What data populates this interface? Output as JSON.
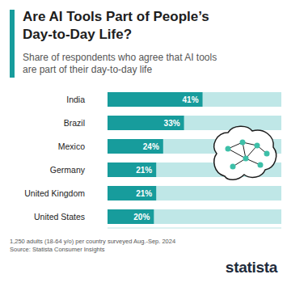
{
  "chart_data": {
    "type": "bar",
    "orientation": "horizontal",
    "title": "Are AI Tools Part of People’s Day-to-Day Life?",
    "subtitle": "Share of respondents who agree that AI tools are part of their day-to-day life",
    "categories": [
      "India",
      "Brazil",
      "Mexico",
      "Germany",
      "United Kingdom",
      "United States"
    ],
    "values": [
      41,
      33,
      24,
      21,
      21,
      20
    ],
    "value_labels": [
      "41%",
      "33%",
      "24%",
      "21%",
      "21%",
      "20%"
    ],
    "color": "#179c9c",
    "xlim": [
      0,
      75
    ],
    "xticks": [],
    "tick_labels": "y",
    "data_labels": true,
    "grid": false,
    "notes": [
      "1,250 adults (18-64 y/o) per country surveyed Aug.-Sep. 2024",
      "Source: Statista Consumer Insights"
    ],
    "logo": "statista"
  }
}
